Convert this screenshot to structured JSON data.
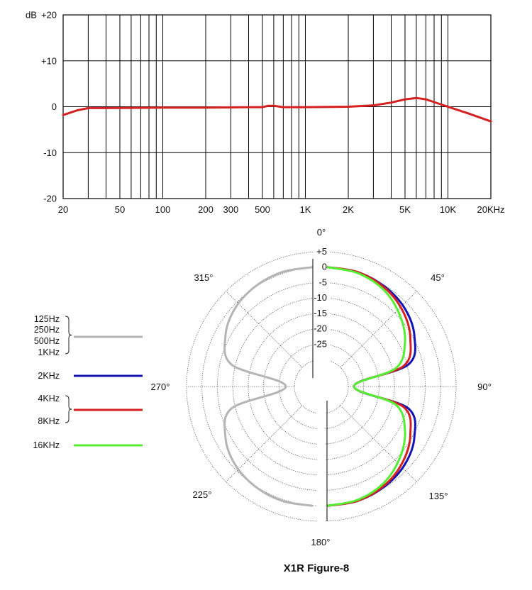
{
  "colors": {
    "red": "#d42020",
    "gray": "#b4b4b4",
    "blue": "#1414b4",
    "green": "#55ee33"
  },
  "chart_data": [
    {
      "type": "line",
      "title": "",
      "xlabel": "",
      "ylabel": "dB",
      "x_scale": "log",
      "xlim": [
        20,
        20000
      ],
      "ylim": [
        -20,
        20
      ],
      "grid": true,
      "y_ticks": [
        "+20",
        "+10",
        "0",
        "-10",
        "-20"
      ],
      "y_tick_values": [
        20,
        10,
        0,
        -10,
        -20
      ],
      "x_ticks": [
        "20",
        "50",
        "100",
        "200",
        "300",
        "500",
        "1K",
        "2K",
        "5K",
        "10K",
        "20KHz"
      ],
      "x_tick_values": [
        20,
        50,
        100,
        200,
        300,
        500,
        1000,
        2000,
        5000,
        10000,
        20000
      ],
      "series": [
        {
          "color": "#d42020",
          "x": [
            20,
            25,
            30,
            40,
            60,
            100,
            200,
            400,
            500,
            550,
            600,
            700,
            1000,
            2000,
            3000,
            4000,
            5000,
            6000,
            7000,
            8000,
            10000,
            14000,
            20000
          ],
          "y": [
            -1.8,
            -0.8,
            -0.3,
            -0.3,
            -0.25,
            -0.2,
            -0.2,
            -0.1,
            -0.1,
            0.2,
            0.2,
            -0.1,
            -0.1,
            0,
            0.3,
            0.9,
            1.6,
            1.9,
            1.6,
            1.0,
            0,
            -1.5,
            -3.2
          ]
        }
      ]
    },
    {
      "type": "polar",
      "title": "X1R Figure-8",
      "angle_labels": [
        "0°",
        "45°",
        "90°",
        "135°",
        "180°",
        "225°",
        "270°",
        "315°"
      ],
      "r_ticks": [
        "+5",
        "0",
        "-5",
        "-10",
        "-15",
        "-20",
        "-25"
      ],
      "r_tick_values": [
        5,
        0,
        -5,
        -10,
        -15,
        -20,
        -25
      ],
      "rlim": [
        -30,
        5
      ],
      "legend": [
        {
          "labels": [
            "125Hz",
            "250Hz",
            "500Hz",
            "1KHz"
          ],
          "color": "#b4b4b4"
        },
        {
          "labels": [
            "2KHz"
          ],
          "color": "#1414b4"
        },
        {
          "labels": [
            "4KHz",
            "8KHz"
          ],
          "color": "#d42020"
        },
        {
          "labels": [
            "16KHz"
          ],
          "color": "#55ee33"
        }
      ],
      "series": [
        {
          "name": "125Hz 250Hz 500Hz 1KHz",
          "color": "#b4b4b4",
          "angles_deg": [
            0,
            15,
            30,
            45,
            60,
            75,
            90,
            105,
            120,
            135,
            150,
            165,
            180
          ],
          "db": [
            0,
            -0.3,
            -1.3,
            -3.0,
            -6.0,
            -11.5,
            -30,
            -11.5,
            -6.0,
            -3.0,
            -1.3,
            -0.3,
            0
          ]
        },
        {
          "name": "2KHz",
          "color": "#1414b4",
          "angles_deg": [
            0,
            15,
            30,
            45,
            60,
            75,
            90,
            105,
            120,
            135,
            150,
            165,
            180
          ],
          "db": [
            0,
            -0.3,
            -1.3,
            -3.0,
            -6.0,
            -11.5,
            -30,
            -11.5,
            -6.0,
            -3.0,
            -1.3,
            -0.3,
            0
          ]
        },
        {
          "name": "4KHz 8KHz",
          "color": "#d42020",
          "angles_deg": [
            0,
            15,
            30,
            45,
            60,
            75,
            90,
            105,
            120,
            135,
            150,
            165,
            180
          ],
          "db": [
            0,
            -0.3,
            -1.6,
            -4.0,
            -7.5,
            -13.0,
            -30,
            -13.0,
            -7.5,
            -4.0,
            -1.6,
            -0.3,
            0
          ]
        },
        {
          "name": "16KHz",
          "color": "#55ee33",
          "angles_deg": [
            0,
            15,
            30,
            45,
            60,
            75,
            90,
            105,
            120,
            135,
            150,
            165,
            180
          ],
          "db": [
            0,
            -0.6,
            -2.3,
            -5.5,
            -9.5,
            -15.5,
            -30,
            -15.5,
            -9.5,
            -5.5,
            -2.3,
            -0.6,
            0
          ]
        }
      ]
    }
  ]
}
